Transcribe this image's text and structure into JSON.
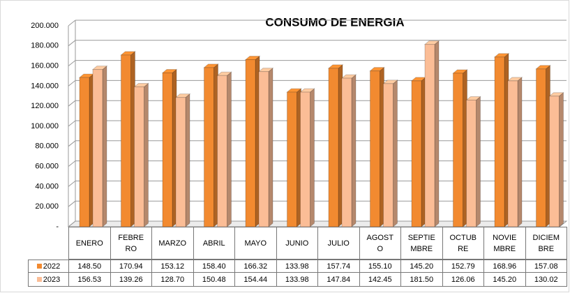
{
  "chart_data": {
    "type": "bar3d",
    "title": "CONSUMO DE ENERGIA",
    "categories": [
      "ENERO",
      "FEBRERO",
      "MARZO",
      "ABRIL",
      "MAYO",
      "JUNIO",
      "JULIO",
      "AGOSTO",
      "SEPTIEMBRE",
      "OCTUBRE",
      "NOVIEMBRE",
      "DICIEMBRE"
    ],
    "series": [
      {
        "name": "2022",
        "color": "#f28a30",
        "values": [
          148.5,
          170.94,
          153.12,
          158.4,
          166.32,
          133.98,
          157.74,
          155.1,
          145.2,
          152.79,
          168.96,
          157.08
        ],
        "value_labels": [
          "148.50",
          "170.94",
          "153.12",
          "158.40",
          "166.32",
          "133.98",
          "157.74",
          "155.10",
          "145.20",
          "152.79",
          "168.96",
          "157.08"
        ]
      },
      {
        "name": "2023",
        "color": "#fbbd96",
        "values": [
          156.53,
          139.26,
          128.7,
          150.48,
          154.44,
          133.98,
          147.84,
          142.45,
          181.5,
          126.06,
          145.2,
          130.02
        ],
        "value_labels": [
          "156.53",
          "139.26",
          "128.70",
          "150.48",
          "154.44",
          "133.98",
          "147.84",
          "142.45",
          "181.50",
          "126.06",
          "145.20",
          "130.02"
        ]
      }
    ],
    "ylim": [
      0,
      200
    ],
    "yticks": [
      {
        "value": 0,
        "label": "-"
      },
      {
        "value": 20,
        "label": "20.000"
      },
      {
        "value": 40,
        "label": "40.000"
      },
      {
        "value": 60,
        "label": "60.000"
      },
      {
        "value": 80,
        "label": "80.000"
      },
      {
        "value": 100,
        "label": "100.000"
      },
      {
        "value": 120,
        "label": "120.000"
      },
      {
        "value": 140,
        "label": "140.000"
      },
      {
        "value": 160,
        "label": "160.000"
      },
      {
        "value": 180,
        "label": "180.000"
      },
      {
        "value": 200,
        "label": "200.000"
      }
    ],
    "grid": true
  }
}
